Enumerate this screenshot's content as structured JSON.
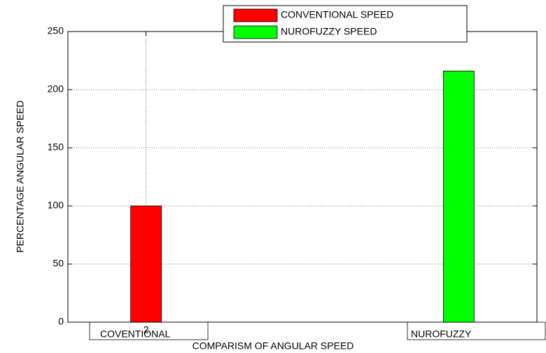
{
  "chart_data": {
    "type": "bar",
    "xlabel": "COMPARISM OF ANGULAR SPEED",
    "ylabel": "PERCENTAGE ANGULAR SPEED",
    "series": [
      {
        "name": "CONVENTIONAL SPEED",
        "color": "#ff0000",
        "x": [
          2
        ],
        "values": [
          100
        ]
      },
      {
        "name": "NUROFUZZY SPEED",
        "color": "#00ff00",
        "x": [
          3
        ],
        "values": [
          216
        ]
      }
    ],
    "annotations": [
      "COVENTIONAL",
      "NUROFUZZY"
    ],
    "xlim": [
      1.75,
      3.25
    ],
    "xticks": [
      2
    ],
    "ylim": [
      0,
      250
    ],
    "yticks": [
      0,
      50,
      100,
      150,
      200,
      250
    ],
    "grid": true
  }
}
